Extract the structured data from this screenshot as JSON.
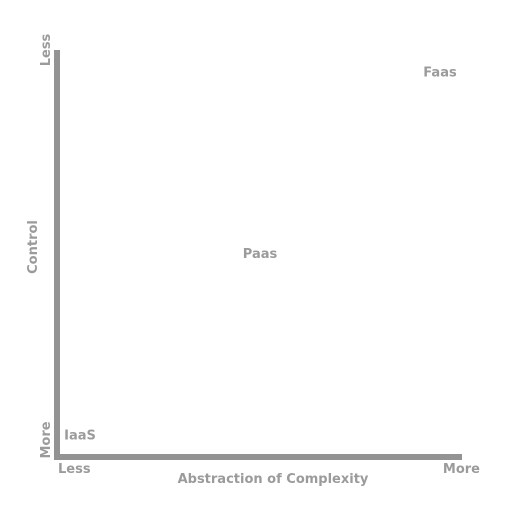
{
  "x_axis": {
    "title": "Abstraction of Complexity",
    "start_label": "Less",
    "end_label": "More"
  },
  "y_axis": {
    "title": "Control",
    "top_label": "Less",
    "bottom_label": "More"
  },
  "points": [
    {
      "label": "IaaS",
      "x": 0.05,
      "y": 0.05
    },
    {
      "label": "Paas",
      "x": 0.5,
      "y": 0.5
    },
    {
      "label": "Faas",
      "x": 0.95,
      "y": 0.95
    }
  ],
  "colors": {
    "axis": "#939393",
    "text": "#9b9b9b"
  }
}
